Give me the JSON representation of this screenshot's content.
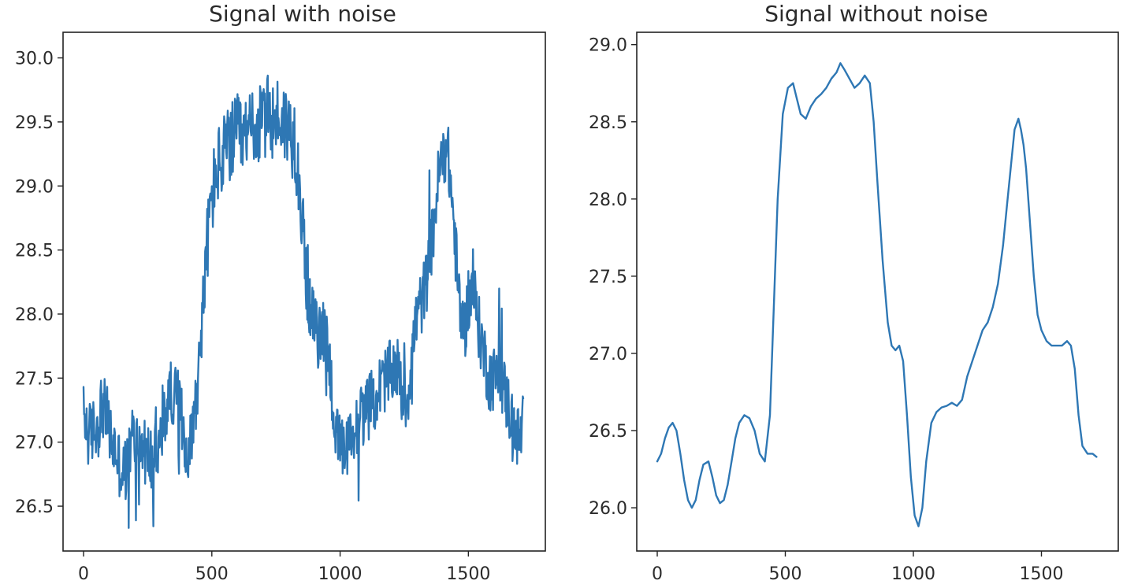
{
  "chart_data": [
    {
      "type": "line",
      "title": "Signal with noise",
      "xlabel": "",
      "ylabel": "",
      "xlim": [
        -80,
        1800
      ],
      "ylim": [
        26.15,
        30.2
      ],
      "xticks": [
        0,
        500,
        1000,
        1500
      ],
      "xtick_labels": [
        "0",
        "500",
        "1000",
        "1500"
      ],
      "yticks": [
        26.5,
        27.0,
        27.5,
        28.0,
        28.5,
        29.0,
        29.5,
        30.0
      ],
      "ytick_labels": [
        "26.5",
        "27.0",
        "27.5",
        "28.0",
        "28.5",
        "29.0",
        "29.5",
        "30.0"
      ],
      "grid": false,
      "color": "#2e77b4",
      "noise": true,
      "series": [
        {
          "x": [
            0,
            20,
            40,
            60,
            70,
            90,
            110,
            130,
            150,
            170,
            190,
            210,
            230,
            250,
            270,
            290,
            310,
            330,
            350,
            370,
            390,
            410,
            430,
            450,
            470,
            490,
            500,
            520,
            540,
            560,
            580,
            600,
            620,
            640,
            660,
            680,
            700,
            720,
            740,
            760,
            780,
            800,
            820,
            840,
            860,
            880,
            900,
            920,
            940,
            960,
            980,
            1000,
            1020,
            1040,
            1060,
            1080,
            1100,
            1120,
            1140,
            1160,
            1180,
            1200,
            1220,
            1240,
            1260,
            1280,
            1300,
            1320,
            1340,
            1360,
            1380,
            1400,
            1420,
            1440,
            1460,
            1480,
            1500,
            1520,
            1540,
            1560,
            1580,
            1600,
            1620,
            1640,
            1660,
            1680,
            1700,
            1715
          ],
          "y": [
            27.2,
            27.05,
            27.1,
            27.15,
            27.3,
            27.2,
            27.0,
            26.9,
            26.75,
            26.8,
            27.05,
            27.0,
            26.95,
            26.9,
            26.85,
            26.95,
            27.1,
            27.35,
            27.4,
            27.3,
            27.1,
            26.9,
            27.2,
            27.6,
            28.2,
            28.75,
            28.9,
            29.15,
            29.2,
            29.3,
            29.35,
            29.4,
            29.35,
            29.4,
            29.5,
            29.45,
            29.5,
            29.55,
            29.5,
            29.55,
            29.5,
            29.45,
            29.35,
            29.1,
            28.5,
            28.1,
            27.9,
            27.8,
            27.9,
            27.6,
            27.1,
            26.95,
            26.9,
            27.0,
            27.1,
            27.2,
            27.25,
            27.3,
            27.35,
            27.45,
            27.5,
            27.55,
            27.6,
            27.4,
            27.3,
            27.7,
            28.0,
            28.1,
            28.3,
            28.6,
            29.0,
            29.3,
            29.25,
            28.8,
            28.2,
            27.8,
            28.1,
            28.2,
            27.9,
            27.7,
            27.5,
            27.5,
            27.55,
            27.4,
            27.25,
            27.1,
            27.0,
            27.15
          ]
        }
      ]
    },
    {
      "type": "line",
      "title": "Signal without noise",
      "xlabel": "",
      "ylabel": "",
      "xlim": [
        -80,
        1800
      ],
      "ylim": [
        25.72,
        29.08
      ],
      "xticks": [
        0,
        500,
        1000,
        1500
      ],
      "xtick_labels": [
        "0",
        "500",
        "1000",
        "1500"
      ],
      "yticks": [
        26.0,
        26.5,
        27.0,
        27.5,
        28.0,
        28.5,
        29.0
      ],
      "ytick_labels": [
        "26.0",
        "26.5",
        "27.0",
        "27.5",
        "28.0",
        "28.5",
        "29.0"
      ],
      "grid": false,
      "color": "#2e77b4",
      "noise": false,
      "series": [
        {
          "x": [
            0,
            15,
            30,
            45,
            60,
            75,
            90,
            105,
            120,
            135,
            150,
            165,
            180,
            200,
            215,
            230,
            245,
            260,
            275,
            290,
            305,
            320,
            340,
            360,
            380,
            400,
            420,
            440,
            455,
            470,
            490,
            510,
            530,
            545,
            560,
            580,
            600,
            620,
            640,
            660,
            680,
            700,
            715,
            730,
            750,
            770,
            790,
            810,
            830,
            845,
            860,
            880,
            900,
            915,
            930,
            945,
            960,
            975,
            990,
            1005,
            1020,
            1035,
            1050,
            1070,
            1090,
            1110,
            1130,
            1150,
            1170,
            1190,
            1210,
            1230,
            1250,
            1270,
            1290,
            1310,
            1330,
            1350,
            1365,
            1380,
            1395,
            1410,
            1420,
            1430,
            1440,
            1455,
            1470,
            1485,
            1500,
            1520,
            1540,
            1560,
            1580,
            1600,
            1615,
            1630,
            1645,
            1660,
            1680,
            1700,
            1715
          ],
          "y": [
            26.3,
            26.35,
            26.45,
            26.52,
            26.55,
            26.5,
            26.35,
            26.18,
            26.05,
            26.0,
            26.05,
            26.18,
            26.28,
            26.3,
            26.2,
            26.08,
            26.03,
            26.05,
            26.15,
            26.3,
            26.45,
            26.55,
            26.6,
            26.58,
            26.5,
            26.35,
            26.3,
            26.6,
            27.3,
            28.0,
            28.55,
            28.72,
            28.75,
            28.65,
            28.55,
            28.52,
            28.6,
            28.65,
            28.68,
            28.72,
            28.78,
            28.82,
            28.88,
            28.84,
            28.78,
            28.72,
            28.75,
            28.8,
            28.75,
            28.5,
            28.1,
            27.6,
            27.2,
            27.05,
            27.02,
            27.05,
            26.95,
            26.6,
            26.2,
            25.95,
            25.88,
            26.0,
            26.3,
            26.55,
            26.62,
            26.65,
            26.66,
            26.68,
            26.66,
            26.7,
            26.85,
            26.95,
            27.05,
            27.15,
            27.2,
            27.3,
            27.45,
            27.7,
            27.95,
            28.2,
            28.45,
            28.52,
            28.45,
            28.35,
            28.2,
            27.85,
            27.5,
            27.25,
            27.15,
            27.08,
            27.05,
            27.05,
            27.05,
            27.08,
            27.05,
            26.9,
            26.6,
            26.4,
            26.35,
            26.35,
            26.33
          ]
        }
      ]
    }
  ]
}
